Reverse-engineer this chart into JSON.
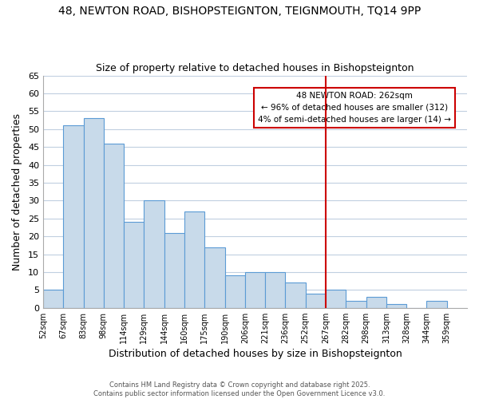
{
  "title_line1": "48, NEWTON ROAD, BISHOPSTEIGNTON, TEIGNMOUTH, TQ14 9PP",
  "title_line2": "Size of property relative to detached houses in Bishopsteignton",
  "tick_labels": [
    "52sqm",
    "67sqm",
    "83sqm",
    "98sqm",
    "114sqm",
    "129sqm",
    "144sqm",
    "160sqm",
    "175sqm",
    "190sqm",
    "206sqm",
    "221sqm",
    "236sqm",
    "252sqm",
    "267sqm",
    "282sqm",
    "298sqm",
    "313sqm",
    "328sqm",
    "344sqm",
    "359sqm"
  ],
  "bar_values": [
    5,
    51,
    53,
    46,
    24,
    30,
    21,
    27,
    17,
    9,
    10,
    10,
    7,
    4,
    5,
    2,
    3,
    1,
    0,
    2
  ],
  "bar_color": "#c8daea",
  "bar_edge_color": "#5b9bd5",
  "xlabel": "Distribution of detached houses by size in Bishopsteignton",
  "ylabel": "Number of detached properties",
  "ylim": [
    0,
    65
  ],
  "yticks": [
    0,
    5,
    10,
    15,
    20,
    25,
    30,
    35,
    40,
    45,
    50,
    55,
    60,
    65
  ],
  "vline_index": 14,
  "vline_color": "#cc0000",
  "annotation_title": "48 NEWTON ROAD: 262sqm",
  "annotation_line2": "← 96% of detached houses are smaller (312)",
  "annotation_line3": "4% of semi-detached houses are larger (14) →",
  "footer_line1": "Contains HM Land Registry data © Crown copyright and database right 2025.",
  "footer_line2": "Contains public sector information licensed under the Open Government Licence v3.0.",
  "background_color": "#ffffff",
  "grid_color": "#c0cfe0"
}
